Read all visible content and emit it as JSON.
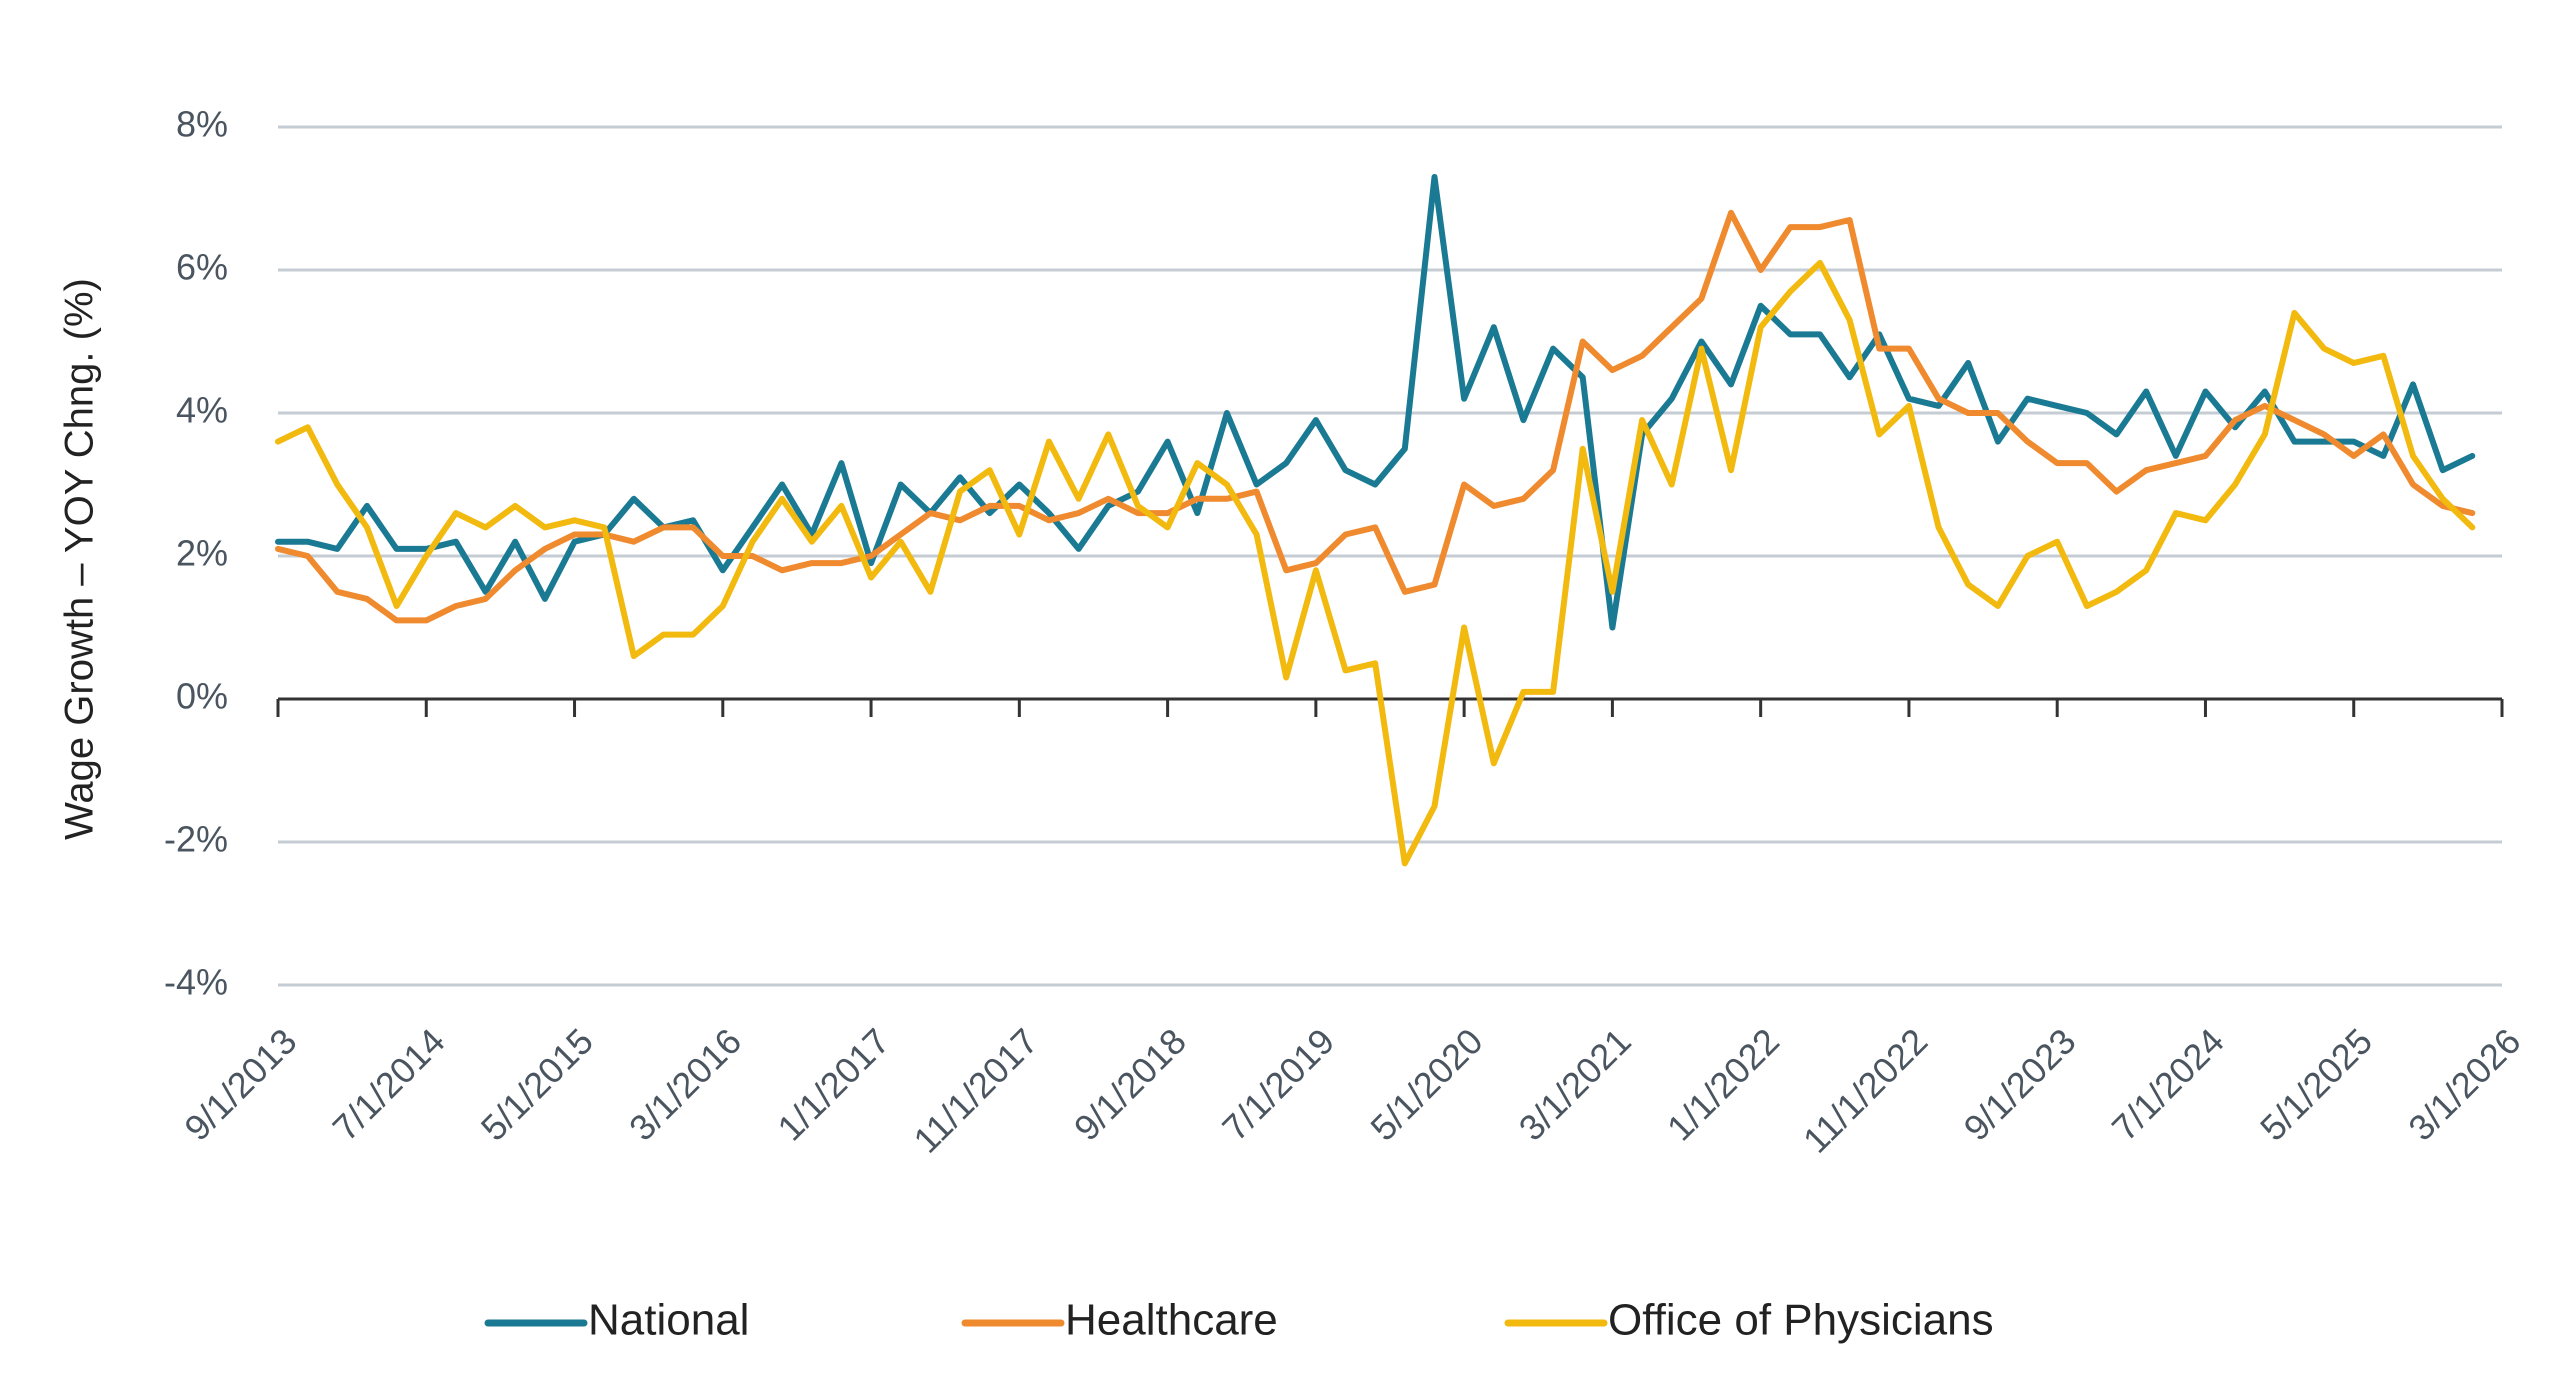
{
  "chart_data": {
    "type": "line",
    "y_label": "Wage Growth – YOY Chng. (%)",
    "x": [
      "9/1/2013",
      "11/1/2013",
      "1/1/2014",
      "3/1/2014",
      "5/1/2014",
      "7/1/2014",
      "9/1/2014",
      "11/1/2014",
      "1/1/2015",
      "3/1/2015",
      "5/1/2015",
      "7/1/2015",
      "9/1/2015",
      "11/1/2015",
      "1/1/2016",
      "3/1/2016",
      "5/1/2016",
      "7/1/2016",
      "9/1/2016",
      "11/1/2016",
      "1/1/2017",
      "3/1/2017",
      "5/1/2017",
      "7/1/2017",
      "9/1/2017",
      "11/1/2017",
      "1/1/2018",
      "3/1/2018",
      "5/1/2018",
      "7/1/2018",
      "9/1/2018",
      "11/1/2018",
      "1/1/2019",
      "3/1/2019",
      "5/1/2019",
      "7/1/2019",
      "9/1/2019",
      "11/1/2019",
      "1/1/2020",
      "3/1/2020",
      "5/1/2020",
      "7/1/2020",
      "9/1/2020",
      "11/1/2020",
      "1/1/2021",
      "3/1/2021",
      "5/1/2021",
      "7/1/2021",
      "9/1/2021",
      "11/1/2021",
      "1/1/2022",
      "3/1/2022",
      "5/1/2022",
      "7/1/2022",
      "9/1/2022",
      "11/1/2022",
      "1/1/2023",
      "3/1/2023",
      "5/1/2023",
      "7/1/2023",
      "9/1/2023",
      "11/1/2023",
      "1/1/2024",
      "3/1/2024",
      "5/1/2024",
      "7/1/2024",
      "9/1/2024",
      "11/1/2024",
      "1/1/2025",
      "3/1/2025",
      "5/1/2025",
      "7/1/2025",
      "9/1/2025",
      "11/1/2025",
      "1/1/2026"
    ],
    "series": [
      {
        "name": "National",
        "color": "#1b7a93",
        "values": [
          2.2,
          2.2,
          2.1,
          2.7,
          2.1,
          2.1,
          2.2,
          1.5,
          2.2,
          1.4,
          2.2,
          2.3,
          2.8,
          2.4,
          2.5,
          1.8,
          2.4,
          3.0,
          2.3,
          3.3,
          1.9,
          3.0,
          2.6,
          3.1,
          2.6,
          3.0,
          2.6,
          2.1,
          2.7,
          2.9,
          3.6,
          2.6,
          4.0,
          3.0,
          3.3,
          3.9,
          3.2,
          3.0,
          3.5,
          7.3,
          4.2,
          5.2,
          3.9,
          4.9,
          4.5,
          1.0,
          3.7,
          4.2,
          5.0,
          4.4,
          5.5,
          5.1,
          5.1,
          4.5,
          5.1,
          4.2,
          4.1,
          4.7,
          3.6,
          4.2,
          4.1,
          4.0,
          3.7,
          4.3,
          3.4,
          4.3,
          3.8,
          4.3,
          3.6,
          3.6,
          3.6,
          3.4,
          4.4,
          3.2,
          3.4
        ]
      },
      {
        "name": "Healthcare",
        "color": "#ef8a2e",
        "values": [
          2.1,
          2.0,
          1.5,
          1.4,
          1.1,
          1.1,
          1.3,
          1.4,
          1.8,
          2.1,
          2.3,
          2.3,
          2.2,
          2.4,
          2.4,
          2.0,
          2.0,
          1.8,
          1.9,
          1.9,
          2.0,
          2.3,
          2.6,
          2.5,
          2.7,
          2.7,
          2.5,
          2.6,
          2.8,
          2.6,
          2.6,
          2.8,
          2.8,
          2.9,
          1.8,
          1.9,
          2.3,
          2.4,
          1.5,
          1.6,
          3.0,
          2.7,
          2.8,
          3.2,
          5.0,
          4.6,
          4.8,
          5.2,
          5.6,
          6.8,
          6.0,
          6.6,
          6.6,
          6.7,
          4.9,
          4.9,
          4.2,
          4.0,
          4.0,
          3.6,
          3.3,
          3.3,
          2.9,
          3.2,
          3.3,
          3.4,
          3.9,
          4.1,
          3.9,
          3.7,
          3.4,
          3.7,
          3.0,
          2.7,
          2.6
        ]
      },
      {
        "name": "Office of Physicians",
        "color": "#f2b90f",
        "values": [
          3.6,
          3.8,
          3.0,
          2.4,
          1.3,
          2.0,
          2.6,
          2.4,
          2.7,
          2.4,
          2.5,
          2.4,
          0.6,
          0.9,
          0.9,
          1.3,
          2.2,
          2.8,
          2.2,
          2.7,
          1.7,
          2.2,
          1.5,
          2.9,
          3.2,
          2.3,
          3.6,
          2.8,
          3.7,
          2.7,
          2.4,
          3.3,
          3.0,
          2.3,
          0.3,
          1.8,
          0.4,
          0.5,
          -2.3,
          -1.5,
          1.0,
          -0.9,
          0.1,
          0.1,
          3.5,
          1.5,
          3.9,
          3.0,
          4.9,
          3.2,
          5.2,
          5.7,
          6.1,
          5.3,
          3.7,
          4.1,
          2.4,
          1.6,
          1.3,
          2.0,
          2.2,
          1.3,
          1.5,
          1.8,
          2.6,
          2.5,
          3.0,
          3.7,
          5.4,
          4.9,
          4.7,
          4.8,
          3.4,
          2.8,
          2.4
        ]
      }
    ],
    "xlim": [
      "9/1/2013",
      "3/1/2026"
    ],
    "xticks": [
      "9/1/2013",
      "7/1/2014",
      "5/1/2015",
      "3/1/2016",
      "1/1/2017",
      "11/1/2017",
      "9/1/2018",
      "7/1/2019",
      "5/1/2020",
      "3/1/2021",
      "1/1/2022",
      "11/1/2022",
      "9/1/2023",
      "7/1/2024",
      "5/1/2025",
      "3/1/2026"
    ],
    "ylim": [
      -4,
      8
    ],
    "yticks": [
      {
        "value": -4,
        "label": "-4%"
      },
      {
        "value": -2,
        "label": "-2%"
      },
      {
        "value": 0,
        "label": "0%"
      },
      {
        "value": 2,
        "label": "2%"
      },
      {
        "value": 4,
        "label": "4%"
      },
      {
        "value": 6,
        "label": "6%"
      },
      {
        "value": 8,
        "label": "8%"
      }
    ],
    "grid": true,
    "legend": "bottom"
  }
}
